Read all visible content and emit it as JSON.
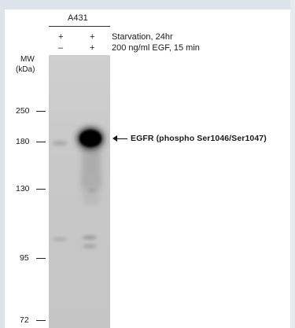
{
  "header": {
    "cell_line": "A431",
    "conditions": [
      {
        "lane1": "+",
        "lane2": "+",
        "label": "Starvation, 24hr"
      },
      {
        "lane1": "–",
        "lane2": "+",
        "label": "200 ng/ml EGF, 15 min"
      }
    ]
  },
  "mw": {
    "title_line1": "MW",
    "title_line2": "(kDa)",
    "markers": [
      "250",
      "180",
      "130",
      "95",
      "72"
    ]
  },
  "band": {
    "label": "EGFR (phospho Ser1046/Ser1047)",
    "arrow_icon": "left-arrow-icon"
  },
  "colors": {
    "blot_background": "#c8c8c8",
    "band": "#000000",
    "frame": "#dde3ea"
  }
}
